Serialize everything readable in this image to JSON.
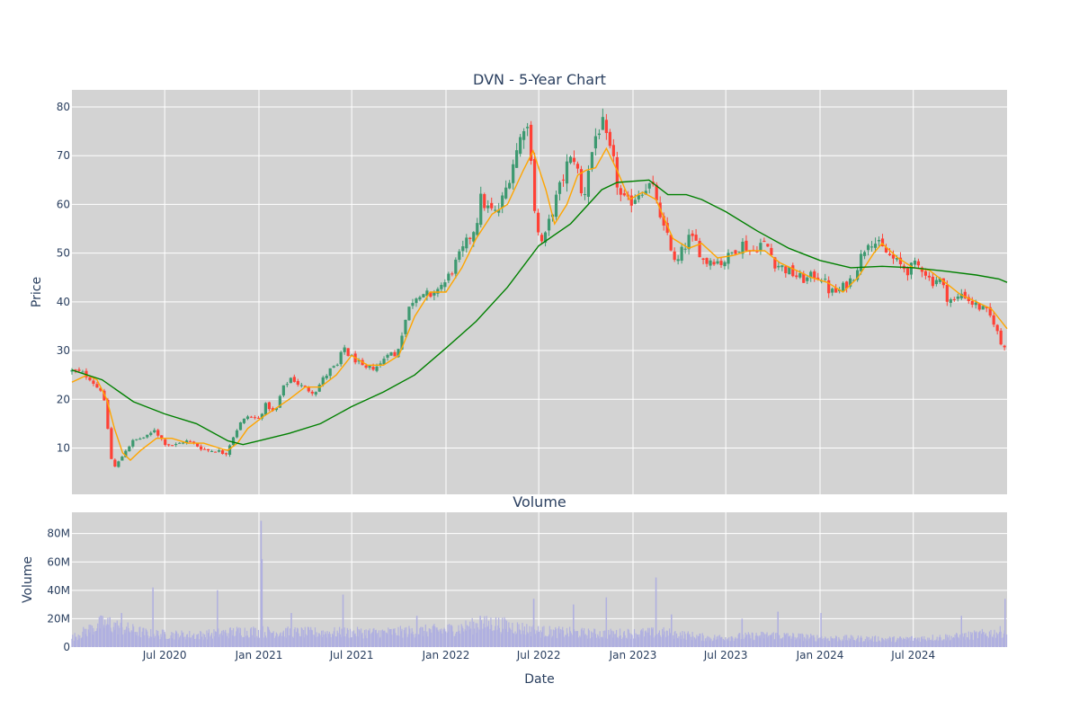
{
  "chart_data": [
    {
      "type": "candlestick",
      "title": "DVN - 5-Year Chart",
      "xlabel": "",
      "ylabel": "Price",
      "ylim": [
        0.5,
        83.5
      ],
      "y_ticks": [
        10,
        20,
        30,
        40,
        50,
        60,
        70,
        80
      ],
      "x_ticks": [
        {
          "date": "2020-07-01",
          "label": "Jul 2020"
        },
        {
          "date": "2021-01-01",
          "label": "Jan 2021"
        },
        {
          "date": "2021-07-01",
          "label": "Jul 2021"
        },
        {
          "date": "2022-01-01",
          "label": "Jan 2022"
        },
        {
          "date": "2022-07-01",
          "label": "Jul 2022"
        },
        {
          "date": "2023-01-01",
          "label": "Jan 2023"
        },
        {
          "date": "2023-07-01",
          "label": "Jul 2023"
        },
        {
          "date": "2024-01-01",
          "label": "Jan 2024"
        },
        {
          "date": "2024-07-01",
          "label": "Jul 2024"
        }
      ],
      "xlim": [
        "2020-01-02",
        "2024-12-31"
      ],
      "background": "#d3d3d3",
      "grid": true,
      "colors": {
        "increasing": "#3d9970",
        "decreasing": "#ff4136",
        "ma_short": "#ffa500",
        "ma_long": "#008000"
      },
      "close_path": [
        [
          "2020-01-02",
          25.8
        ],
        [
          "2020-01-20",
          25.5
        ],
        [
          "2020-02-05",
          24.5
        ],
        [
          "2020-02-20",
          22.5
        ],
        [
          "2020-03-01",
          22.0
        ],
        [
          "2020-03-10",
          16.0
        ],
        [
          "2020-03-18",
          8.0
        ],
        [
          "2020-03-25",
          6.0
        ],
        [
          "2020-04-05",
          7.5
        ],
        [
          "2020-04-15",
          9.5
        ],
        [
          "2020-05-01",
          11.5
        ],
        [
          "2020-05-15",
          12.0
        ],
        [
          "2020-06-01",
          12.5
        ],
        [
          "2020-06-10",
          14.0
        ],
        [
          "2020-06-20",
          12.5
        ],
        [
          "2020-07-01",
          11.0
        ],
        [
          "2020-07-20",
          10.5
        ],
        [
          "2020-08-10",
          11.5
        ],
        [
          "2020-08-25",
          11.0
        ],
        [
          "2020-09-10",
          10.0
        ],
        [
          "2020-09-25",
          9.5
        ],
        [
          "2020-10-10",
          9.5
        ],
        [
          "2020-10-28",
          8.8
        ],
        [
          "2020-11-10",
          12.0
        ],
        [
          "2020-11-25",
          15.0
        ],
        [
          "2020-12-10",
          16.5
        ],
        [
          "2020-12-31",
          16.0
        ],
        [
          "2021-01-15",
          19.0
        ],
        [
          "2021-02-01",
          17.0
        ],
        [
          "2021-02-15",
          22.0
        ],
        [
          "2021-03-05",
          24.5
        ],
        [
          "2021-03-20",
          23.0
        ],
        [
          "2021-04-05",
          22.0
        ],
        [
          "2021-04-20",
          21.5
        ],
        [
          "2021-05-05",
          24.0
        ],
        [
          "2021-05-20",
          26.0
        ],
        [
          "2021-06-05",
          27.0
        ],
        [
          "2021-06-15",
          31.0
        ],
        [
          "2021-06-25",
          29.0
        ],
        [
          "2021-07-10",
          28.0
        ],
        [
          "2021-07-25",
          26.0
        ],
        [
          "2021-08-10",
          26.5
        ],
        [
          "2021-08-25",
          27.0
        ],
        [
          "2021-09-10",
          30.0
        ],
        [
          "2021-09-25",
          28.5
        ],
        [
          "2021-10-10",
          35.0
        ],
        [
          "2021-10-25",
          40.0
        ],
        [
          "2021-11-10",
          42.0
        ],
        [
          "2021-11-25",
          41.5
        ],
        [
          "2021-12-05",
          40.0
        ],
        [
          "2021-12-15",
          43.0
        ],
        [
          "2021-12-31",
          44.0
        ],
        [
          "2022-01-15",
          47.0
        ],
        [
          "2022-01-31",
          50.0
        ],
        [
          "2022-02-15",
          53.0
        ],
        [
          "2022-03-01",
          56.0
        ],
        [
          "2022-03-10",
          61.0
        ],
        [
          "2022-03-25",
          59.0
        ],
        [
          "2022-04-10",
          58.0
        ],
        [
          "2022-04-25",
          62.0
        ],
        [
          "2022-05-10",
          68.0
        ],
        [
          "2022-05-25",
          73.0
        ],
        [
          "2022-06-05",
          78.0
        ],
        [
          "2022-06-15",
          72.0
        ],
        [
          "2022-06-25",
          56.0
        ],
        [
          "2022-07-05",
          52.0
        ],
        [
          "2022-07-15",
          53.5
        ],
        [
          "2022-07-25",
          58.0
        ],
        [
          "2022-08-10",
          63.0
        ],
        [
          "2022-08-25",
          68.0
        ],
        [
          "2022-09-10",
          70.0
        ],
        [
          "2022-09-25",
          60.0
        ],
        [
          "2022-10-05",
          67.0
        ],
        [
          "2022-10-20",
          74.0
        ],
        [
          "2022-11-01",
          77.0
        ],
        [
          "2022-11-10",
          73.0
        ],
        [
          "2022-11-25",
          68.0
        ],
        [
          "2022-12-05",
          62.0
        ],
        [
          "2022-12-20",
          60.0
        ],
        [
          "2022-12-31",
          61.0
        ],
        [
          "2023-01-15",
          63.0
        ],
        [
          "2023-01-31",
          64.0
        ],
        [
          "2023-02-15",
          62.0
        ],
        [
          "2023-02-25",
          55.0
        ],
        [
          "2023-03-10",
          54.0
        ],
        [
          "2023-03-25",
          47.0
        ],
        [
          "2023-04-05",
          50.0
        ],
        [
          "2023-04-20",
          53.0
        ],
        [
          "2023-05-05",
          52.0
        ],
        [
          "2023-05-20",
          48.0
        ],
        [
          "2023-06-05",
          49.0
        ],
        [
          "2023-06-20",
          48.0
        ],
        [
          "2023-07-05",
          49.0
        ],
        [
          "2023-07-20",
          51.0
        ],
        [
          "2023-08-05",
          52.0
        ],
        [
          "2023-08-20",
          50.0
        ],
        [
          "2023-09-05",
          52.0
        ],
        [
          "2023-09-20",
          51.5
        ],
        [
          "2023-10-05",
          48.0
        ],
        [
          "2023-10-20",
          47.0
        ],
        [
          "2023-11-05",
          46.0
        ],
        [
          "2023-11-20",
          45.0
        ],
        [
          "2023-12-05",
          44.5
        ],
        [
          "2023-12-20",
          45.5
        ],
        [
          "2024-01-05",
          45.0
        ],
        [
          "2024-01-20",
          42.0
        ],
        [
          "2024-02-05",
          42.0
        ],
        [
          "2024-02-20",
          43.5
        ],
        [
          "2024-03-05",
          45.0
        ],
        [
          "2024-03-20",
          49.0
        ],
        [
          "2024-04-05",
          53.0
        ],
        [
          "2024-04-20",
          52.0
        ],
        [
          "2024-05-05",
          50.5
        ],
        [
          "2024-05-20",
          49.0
        ],
        [
          "2024-06-05",
          47.5
        ],
        [
          "2024-06-20",
          46.5
        ],
        [
          "2024-07-05",
          47.5
        ],
        [
          "2024-07-20",
          47.0
        ],
        [
          "2024-08-05",
          44.0
        ],
        [
          "2024-08-20",
          45.0
        ],
        [
          "2024-09-05",
          41.0
        ],
        [
          "2024-09-20",
          40.0
        ],
        [
          "2024-10-05",
          42.0
        ],
        [
          "2024-10-20",
          40.0
        ],
        [
          "2024-11-05",
          39.0
        ],
        [
          "2024-11-20",
          38.0
        ],
        [
          "2024-12-05",
          36.0
        ],
        [
          "2024-12-20",
          31.0
        ],
        [
          "2024-12-31",
          31.5
        ]
      ],
      "ma_short": [
        [
          "2020-01-02",
          23.5
        ],
        [
          "2020-02-01",
          25.0
        ],
        [
          "2020-02-20",
          24.0
        ],
        [
          "2020-03-10",
          20.0
        ],
        [
          "2020-03-25",
          14.0
        ],
        [
          "2020-04-10",
          9.0
        ],
        [
          "2020-04-25",
          7.5
        ],
        [
          "2020-05-15",
          9.5
        ],
        [
          "2020-06-15",
          12.0
        ],
        [
          "2020-07-15",
          12.0
        ],
        [
          "2020-08-15",
          11.0
        ],
        [
          "2020-09-15",
          11.0
        ],
        [
          "2020-10-15",
          10.0
        ],
        [
          "2020-11-01",
          9.5
        ],
        [
          "2020-11-20",
          11.0
        ],
        [
          "2020-12-10",
          14.0
        ],
        [
          "2021-01-10",
          16.5
        ],
        [
          "2021-02-01",
          18.0
        ],
        [
          "2021-03-01",
          20.0
        ],
        [
          "2021-04-01",
          22.5
        ],
        [
          "2021-05-01",
          22.5
        ],
        [
          "2021-06-01",
          25.0
        ],
        [
          "2021-07-01",
          29.0
        ],
        [
          "2021-08-01",
          27.0
        ],
        [
          "2021-09-01",
          27.0
        ],
        [
          "2021-10-01",
          29.0
        ],
        [
          "2021-11-01",
          37.0
        ],
        [
          "2021-12-01",
          42.0
        ],
        [
          "2022-01-01",
          42.0
        ],
        [
          "2022-02-01",
          47.0
        ],
        [
          "2022-03-01",
          53.0
        ],
        [
          "2022-04-01",
          58.0
        ],
        [
          "2022-05-01",
          60.0
        ],
        [
          "2022-06-01",
          67.0
        ],
        [
          "2022-06-20",
          71.0
        ],
        [
          "2022-07-15",
          63.0
        ],
        [
          "2022-08-01",
          56.0
        ],
        [
          "2022-08-25",
          60.0
        ],
        [
          "2022-09-15",
          66.0
        ],
        [
          "2022-10-01",
          67.0
        ],
        [
          "2022-10-20",
          67.5
        ],
        [
          "2022-11-10",
          71.5
        ],
        [
          "2022-12-01",
          67.0
        ],
        [
          "2022-12-25",
          61.0
        ],
        [
          "2023-01-20",
          62.5
        ],
        [
          "2023-02-15",
          61.0
        ],
        [
          "2023-03-20",
          53.0
        ],
        [
          "2023-04-20",
          51.0
        ],
        [
          "2023-05-15",
          52.0
        ],
        [
          "2023-06-15",
          49.0
        ],
        [
          "2023-07-15",
          49.5
        ],
        [
          "2023-08-15",
          50.5
        ],
        [
          "2023-09-15",
          50.5
        ],
        [
          "2023-10-15",
          48.0
        ],
        [
          "2023-11-15",
          46.5
        ],
        [
          "2023-12-15",
          45.0
        ],
        [
          "2024-01-15",
          44.0
        ],
        [
          "2024-02-15",
          42.0
        ],
        [
          "2024-03-15",
          45.0
        ],
        [
          "2024-04-15",
          50.0
        ],
        [
          "2024-05-01",
          52.0
        ],
        [
          "2024-06-01",
          49.0
        ],
        [
          "2024-07-01",
          47.0
        ],
        [
          "2024-08-01",
          46.5
        ],
        [
          "2024-09-01",
          44.0
        ],
        [
          "2024-10-01",
          41.5
        ],
        [
          "2024-11-01",
          40.0
        ],
        [
          "2024-12-01",
          38.5
        ],
        [
          "2024-12-31",
          34.5
        ]
      ],
      "ma_long": [
        [
          "2020-01-02",
          26.0
        ],
        [
          "2020-03-01",
          24.0
        ],
        [
          "2020-05-01",
          19.5
        ],
        [
          "2020-07-01",
          17.0
        ],
        [
          "2020-09-01",
          15.0
        ],
        [
          "2020-11-01",
          11.5
        ],
        [
          "2020-12-01",
          10.7
        ],
        [
          "2021-01-01",
          11.5
        ],
        [
          "2021-03-01",
          13.0
        ],
        [
          "2021-05-01",
          15.0
        ],
        [
          "2021-07-01",
          18.5
        ],
        [
          "2021-09-01",
          21.5
        ],
        [
          "2021-11-01",
          25.0
        ],
        [
          "2022-01-01",
          30.5
        ],
        [
          "2022-03-01",
          36.0
        ],
        [
          "2022-05-01",
          43.0
        ],
        [
          "2022-07-01",
          51.5
        ],
        [
          "2022-09-01",
          56.0
        ],
        [
          "2022-11-01",
          63.0
        ],
        [
          "2022-12-01",
          64.5
        ],
        [
          "2023-02-01",
          65.0
        ],
        [
          "2023-03-10",
          62.0
        ],
        [
          "2023-04-15",
          62.0
        ],
        [
          "2023-05-15",
          61.0
        ],
        [
          "2023-07-01",
          58.5
        ],
        [
          "2023-09-01",
          54.5
        ],
        [
          "2023-11-01",
          51.0
        ],
        [
          "2024-01-01",
          48.5
        ],
        [
          "2024-03-01",
          47.0
        ],
        [
          "2024-05-01",
          47.3
        ],
        [
          "2024-07-01",
          47.0
        ],
        [
          "2024-09-01",
          46.3
        ],
        [
          "2024-11-01",
          45.5
        ],
        [
          "2024-12-15",
          44.7
        ],
        [
          "2024-12-31",
          44.0
        ]
      ]
    },
    {
      "type": "bar",
      "title": "Volume",
      "xlabel": "Date",
      "ylabel": "Volume",
      "ylim": [
        0,
        95000000
      ],
      "y_ticks": [
        {
          "value": 0,
          "label": "0"
        },
        {
          "value": 20000000,
          "label": "20M"
        },
        {
          "value": 40000000,
          "label": "40M"
        },
        {
          "value": 60000000,
          "label": "60M"
        },
        {
          "value": 80000000,
          "label": "80M"
        }
      ],
      "bar_color": "#b0b0e0",
      "baseline_by_period": [
        [
          "2020-01-02",
          7000000
        ],
        [
          "2020-03-01",
          18000000
        ],
        [
          "2020-06-01",
          10000000
        ],
        [
          "2020-09-01",
          9000000
        ],
        [
          "2020-12-01",
          12000000
        ],
        [
          "2021-04-01",
          11000000
        ],
        [
          "2021-09-01",
          11000000
        ],
        [
          "2022-01-01",
          13000000
        ],
        [
          "2022-04-01",
          18000000
        ],
        [
          "2022-07-01",
          12000000
        ],
        [
          "2022-11-01",
          10000000
        ],
        [
          "2023-03-01",
          11000000
        ],
        [
          "2023-06-01",
          7000000
        ],
        [
          "2023-10-01",
          9000000
        ],
        [
          "2024-01-01",
          7000000
        ],
        [
          "2024-06-01",
          6000000
        ],
        [
          "2024-10-01",
          8000000
        ],
        [
          "2024-12-31",
          12000000
        ]
      ],
      "spikes": [
        [
          "2020-03-16",
          21000000
        ],
        [
          "2020-04-08",
          24000000
        ],
        [
          "2020-06-08",
          42000000
        ],
        [
          "2020-10-12",
          40000000
        ],
        [
          "2021-01-05",
          89000000
        ],
        [
          "2021-01-07",
          62000000
        ],
        [
          "2021-03-05",
          24000000
        ],
        [
          "2021-06-14",
          37000000
        ],
        [
          "2021-11-05",
          22000000
        ],
        [
          "2022-03-09",
          22000000
        ],
        [
          "2022-06-21",
          34000000
        ],
        [
          "2022-09-07",
          30000000
        ],
        [
          "2022-11-10",
          35000000
        ],
        [
          "2023-02-15",
          49000000
        ],
        [
          "2023-03-17",
          23000000
        ],
        [
          "2023-08-02",
          20000000
        ],
        [
          "2023-10-11",
          25000000
        ],
        [
          "2024-01-03",
          24000000
        ],
        [
          "2024-10-03",
          22000000
        ],
        [
          "2024-12-27",
          34000000
        ]
      ]
    }
  ]
}
